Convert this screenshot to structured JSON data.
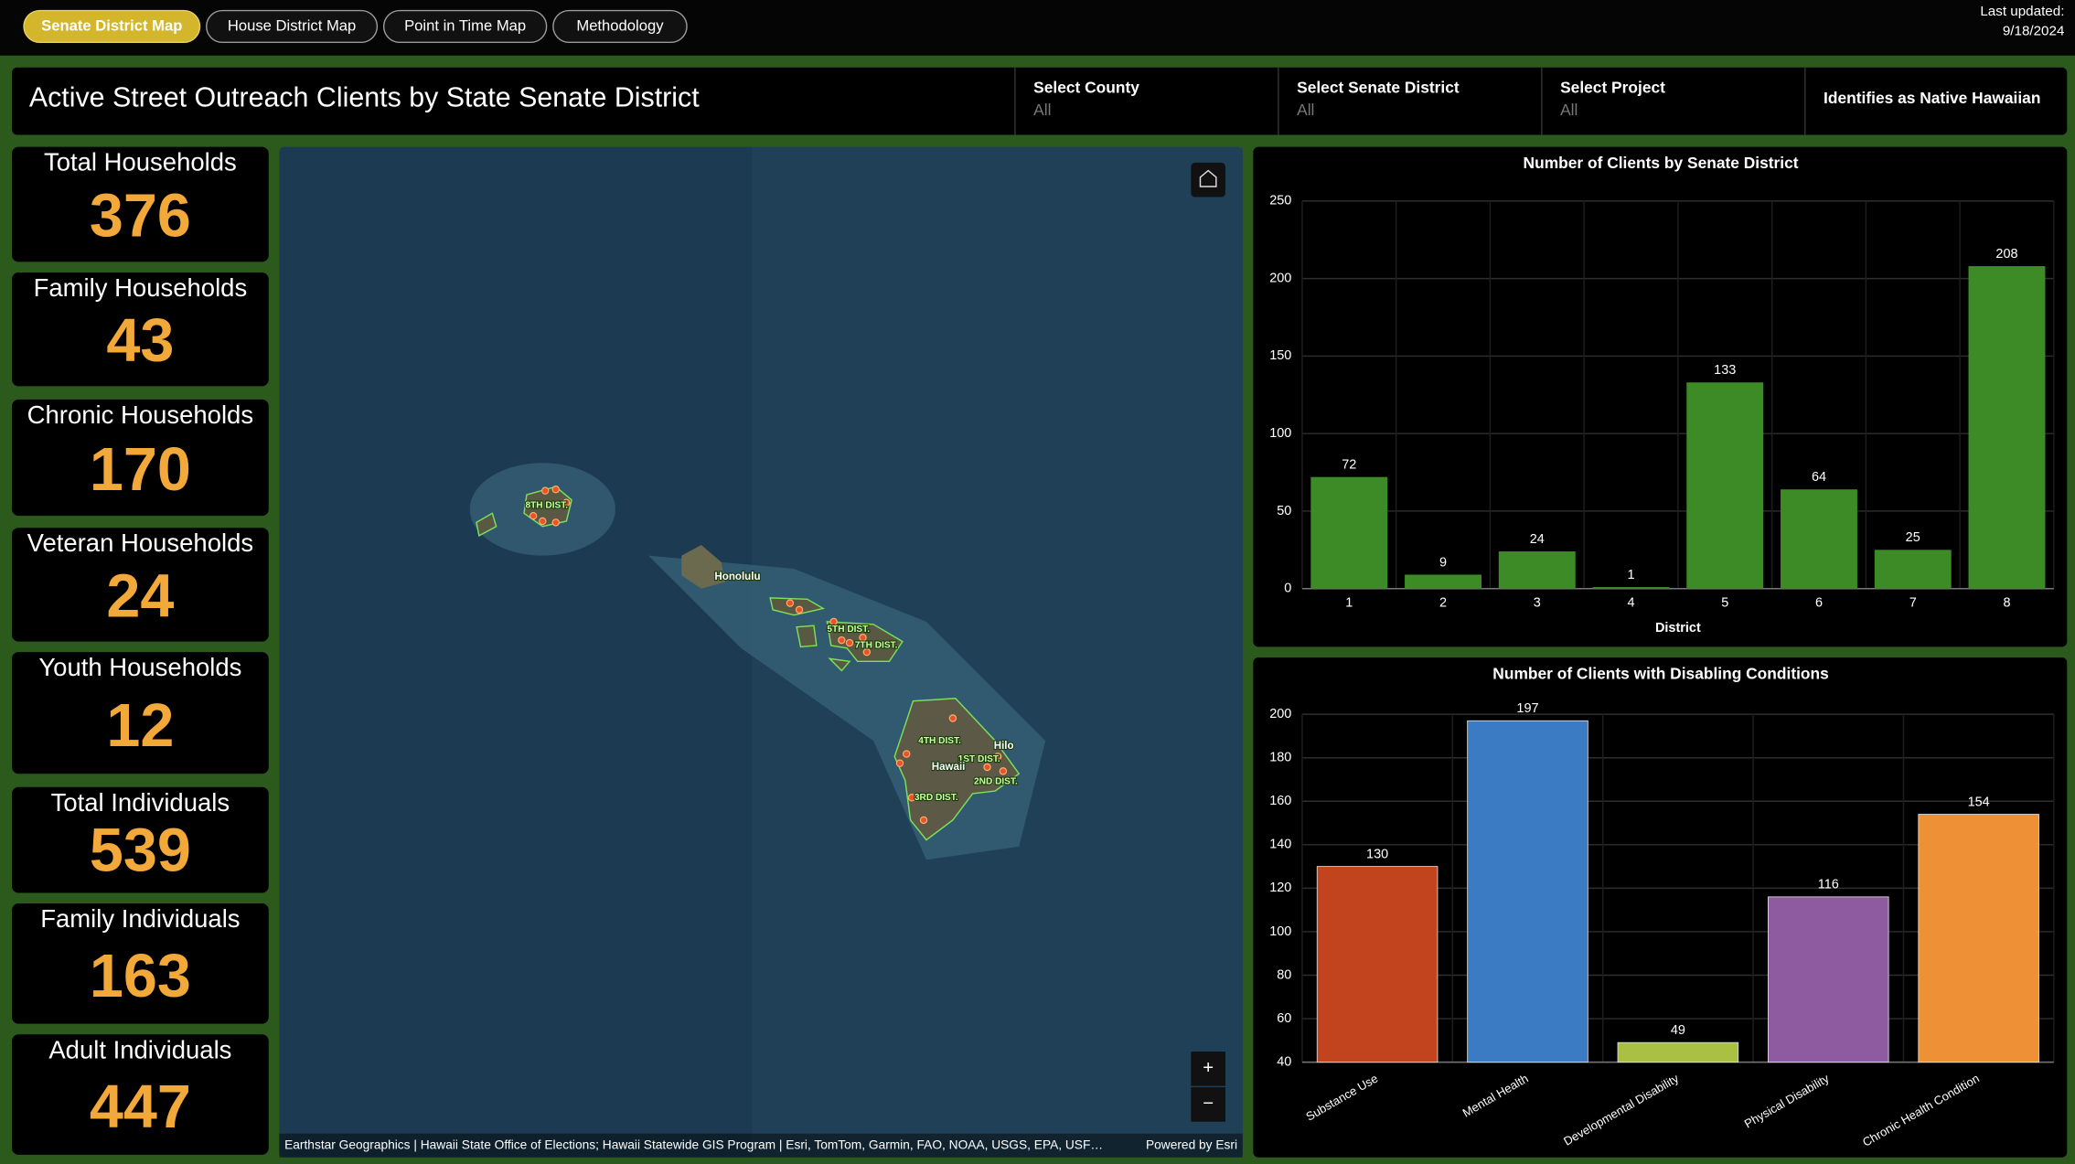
{
  "nav": {
    "tabs": [
      "Senate District Map",
      "House District Map",
      "Point in Time Map",
      "Methodology"
    ],
    "last_updated_label": "Last updated:",
    "last_updated": "9/18/2024"
  },
  "header": {
    "title": "Active Street Outreach Clients by State Senate District",
    "filters": [
      {
        "label": "Select County",
        "value": "All"
      },
      {
        "label": "Select Senate District",
        "value": "All"
      },
      {
        "label": "Select Project",
        "value": "All"
      },
      {
        "label": "Identifies as Native Hawaiian"
      }
    ]
  },
  "kpis": [
    {
      "label": "Total Households",
      "value": 376
    },
    {
      "label": "Family Households",
      "value": 43
    },
    {
      "label": "Chronic Households",
      "value": 170
    },
    {
      "label": "Veteran Households",
      "value": 24
    },
    {
      "label": "Youth Households",
      "value": 12
    },
    {
      "label": "Total Individuals",
      "value": 539
    },
    {
      "label": "Family Individuals",
      "value": 163
    },
    {
      "label": "Adult Individuals",
      "value": 447
    }
  ],
  "map": {
    "labels": [
      "8TH DIST.",
      "Honolulu",
      "5TH DIST.",
      "7TH DIST.",
      "4TH DIST.",
      "Hilo",
      "1ST DIST.",
      "Hawaii",
      "2ND DIST.",
      "3RD DIST."
    ],
    "attribution": "Earthstar Geographics | Hawaii State Office of Elections; Hawaii Statewide GIS Program | Esri, TomTom, Garmin, FAO, NOAA, USGS, EPA, USF…",
    "powered_by": "Powered by Esri",
    "zoom_in": "+",
    "zoom_out": "−"
  },
  "chart_data": [
    {
      "type": "bar",
      "title": "Number of Clients by Senate District",
      "x_label": "District",
      "categories": [
        "1",
        "2",
        "3",
        "4",
        "5",
        "6",
        "7",
        "8"
      ],
      "values": [
        72,
        9,
        24,
        1,
        133,
        64,
        25,
        208
      ],
      "color": "#3d8b26",
      "ylim": [
        0,
        250
      ],
      "yticks": [
        0,
        50,
        100,
        150,
        200,
        250
      ],
      "grid": true
    },
    {
      "type": "bar",
      "title": "Number of Clients with Disabling Conditions",
      "categories": [
        "Substance Use",
        "Mental Health",
        "Developmental Disability",
        "Physical Disability",
        "Chronic Health Condition"
      ],
      "values": [
        130,
        197,
        49,
        116,
        154
      ],
      "colors": [
        "#c1441f",
        "#3a7bc4",
        "#a9c043",
        "#8e5aa0",
        "#ee9136"
      ],
      "ylim": [
        40,
        200
      ],
      "yticks": [
        40,
        60,
        80,
        100,
        120,
        140,
        160,
        180,
        200
      ],
      "grid": true
    }
  ]
}
